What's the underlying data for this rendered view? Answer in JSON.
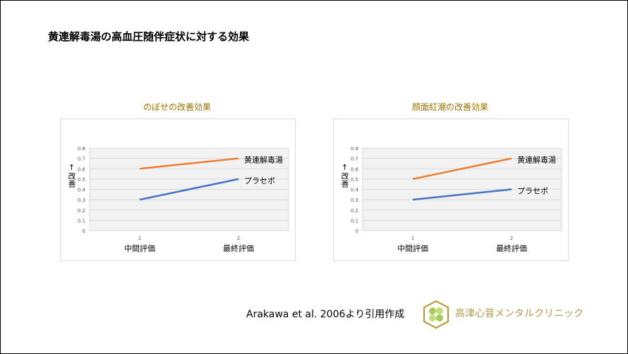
{
  "title": "黄連解毒湯の高血圧随伴症状に対する効果",
  "citation": "Arakawa et al. 2006より引用作成",
  "logo_text": "高津心音メンタルクリニック",
  "chart_data": [
    {
      "type": "line",
      "title": "のぼせの改善効果",
      "ylabel": "↑改善",
      "ylim": [
        0,
        0.8
      ],
      "yticks": [
        "0",
        "0.1",
        "0.2",
        "0.3",
        "0.4",
        "0.5",
        "0.6",
        "0.7",
        "0.8"
      ],
      "x": [
        "1",
        "2"
      ],
      "categories": [
        "中間評価",
        "最終評価"
      ],
      "grid": true,
      "series": [
        {
          "name": "黄連解毒湯",
          "values": [
            0.6,
            0.7
          ],
          "color": "#ed7d31"
        },
        {
          "name": "プラセボ",
          "values": [
            0.3,
            0.5
          ],
          "color": "#4472c4"
        }
      ]
    },
    {
      "type": "line",
      "title": "顔面紅潮の改善効果",
      "ylabel": "↑改善",
      "ylim": [
        0,
        0.8
      ],
      "yticks": [
        "0",
        "0.1",
        "0.2",
        "0.3",
        "0.4",
        "0.5",
        "0.6",
        "0.7",
        "0.8"
      ],
      "x": [
        "1",
        "2"
      ],
      "categories": [
        "中間評価",
        "最終評価"
      ],
      "grid": true,
      "series": [
        {
          "name": "黄連解毒湯",
          "values": [
            0.5,
            0.7
          ],
          "color": "#ed7d31"
        },
        {
          "name": "プラセボ",
          "values": [
            0.3,
            0.4
          ],
          "color": "#4472c4"
        }
      ]
    }
  ]
}
